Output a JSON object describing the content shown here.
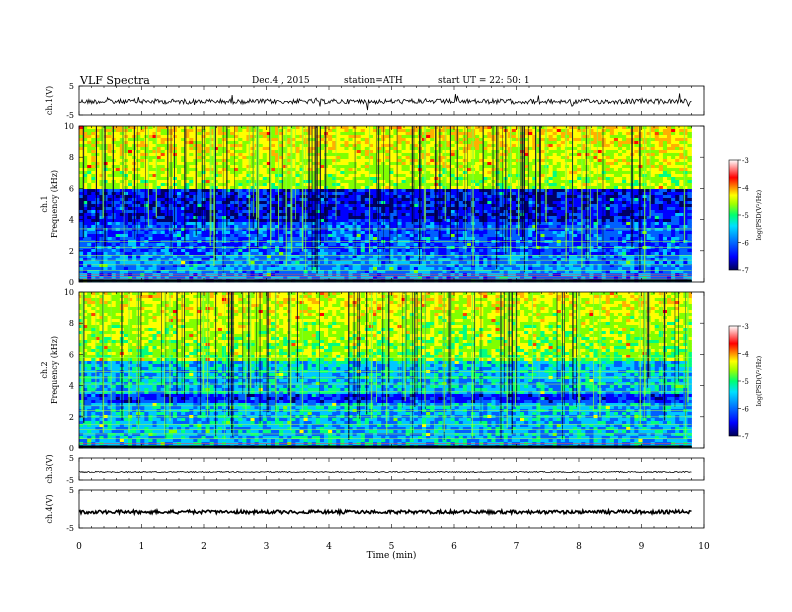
{
  "header": {
    "title": "VLF  Spectra",
    "date": "Dec.4  , 2015",
    "station": "station=ATH",
    "start": "start  UT  =   22: 50: 1"
  },
  "colors": {
    "cmap": [
      "#000066",
      "#0000ff",
      "#0060ff",
      "#00c8ff",
      "#00ff80",
      "#80ff00",
      "#ffff00",
      "#ffb000",
      "#ff4000",
      "#ff0000",
      "#ff9090",
      "#ffffff"
    ]
  },
  "chart_data": [
    {
      "type": "line",
      "ylabel": "ch.1(V)",
      "y_ticks": [
        "5",
        "-5"
      ],
      "xlim": [
        0,
        10
      ]
    },
    {
      "type": "heatmap",
      "ylabel1": "ch.1",
      "ylabel2": "Frequency  (kHz)",
      "y_ticks": [
        "0",
        "2",
        "4",
        "6",
        "8",
        "10"
      ],
      "ylim": [
        0,
        10
      ],
      "colorbar": {
        "ticks": [
          "-3",
          "-4",
          "-5",
          "-6",
          "-7"
        ],
        "label": "log(PSD(V²/Hz)",
        "range": [
          -7,
          -3
        ]
      }
    },
    {
      "type": "heatmap",
      "ylabel1": "ch.2",
      "ylabel2": "Frequency  (kHz)",
      "y_ticks": [
        "0",
        "2",
        "4",
        "6",
        "8",
        "10"
      ],
      "ylim": [
        0,
        10
      ],
      "colorbar": {
        "ticks": [
          "-3",
          "-4",
          "-5",
          "-6",
          "-7"
        ],
        "label": "log(PSD(V²/Hz)",
        "range": [
          -7,
          -3
        ]
      }
    },
    {
      "type": "line",
      "ylabel": "ch.3(V)",
      "y_ticks": [
        "5",
        "-5"
      ]
    },
    {
      "type": "line",
      "ylabel": "ch.4(V)",
      "y_ticks": [
        "5",
        "-5"
      ]
    }
  ],
  "xaxis": {
    "label": "Time  (min)",
    "ticks": [
      "0",
      "1",
      "2",
      "3",
      "4",
      "5",
      "6",
      "7",
      "8",
      "9",
      "10"
    ],
    "range": [
      0,
      10
    ],
    "data_end": 9.8
  }
}
